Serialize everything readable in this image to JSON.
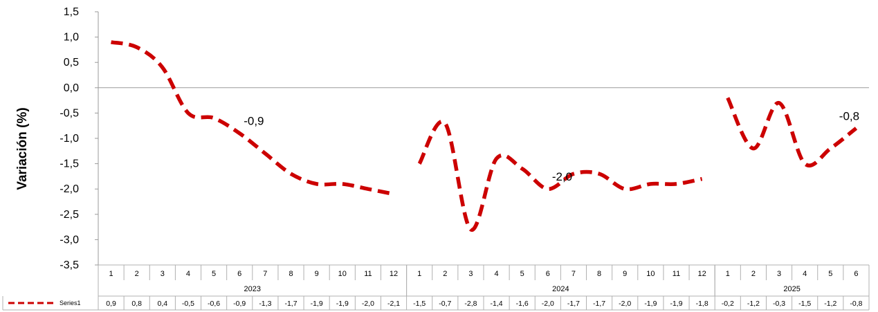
{
  "chart_data": {
    "type": "line",
    "ylabel": "Variación (%)",
    "ylim": [
      -3.5,
      1.5
    ],
    "yticks": [
      "1,5",
      "1,0",
      "0,5",
      "0,0",
      "-0,5",
      "-1,0",
      "-1,5",
      "-2,0",
      "-2,5",
      "-3,0",
      "-3,5"
    ],
    "years": [
      {
        "label": "2023",
        "months": [
          "1",
          "2",
          "3",
          "4",
          "5",
          "6",
          "7",
          "8",
          "9",
          "10",
          "11",
          "12"
        ]
      },
      {
        "label": "2024",
        "months": [
          "1",
          "2",
          "3",
          "4",
          "5",
          "6",
          "7",
          "8",
          "9",
          "10",
          "11",
          "12"
        ]
      },
      {
        "label": "2025",
        "months": [
          "1",
          "2",
          "3",
          "4",
          "5",
          "6"
        ]
      }
    ],
    "series": [
      {
        "name": "Series1",
        "color": "#cc0000",
        "style": "dashed",
        "values": [
          0.9,
          0.8,
          0.4,
          -0.5,
          -0.6,
          -0.9,
          -1.3,
          -1.7,
          -1.9,
          -1.9,
          -2.0,
          -2.1,
          -1.5,
          -0.7,
          -2.8,
          -1.4,
          -1.6,
          -2.0,
          -1.7,
          -1.7,
          -2.0,
          -1.9,
          -1.9,
          -1.8,
          -0.2,
          -1.2,
          -0.3,
          -1.5,
          -1.2,
          -0.8
        ],
        "table_values": [
          "0,9",
          "0,8",
          "0,4",
          "-0,5",
          "-0,6",
          "-0,9",
          "-1,3",
          "-1,7",
          "-1,9",
          "-1,9",
          "-2,0",
          "-2,1",
          "-1,5",
          "-0,7",
          "-2,8",
          "-1,4",
          "-1,6",
          "-2,0",
          "-1,7",
          "-1,7",
          "-2,0",
          "-1,9",
          "-1,9",
          "-1,8",
          "-0,2",
          "-1,2",
          "-0,3",
          "-1,5",
          "-1,2",
          "-0,8"
        ]
      }
    ],
    "data_labels": [
      {
        "index": 5,
        "text": "-0,9"
      },
      {
        "index": 17,
        "text": "-2,0"
      },
      {
        "index": 29,
        "text": "-0,8"
      }
    ],
    "grid": false,
    "legend": "data-table"
  }
}
